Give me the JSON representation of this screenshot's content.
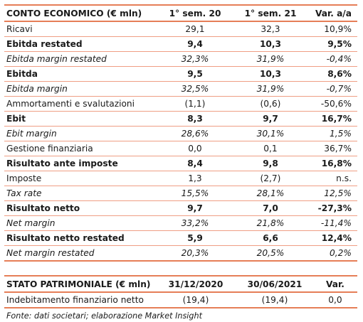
{
  "conto_economico": {
    "headers": [
      "CONTO ECONOMICO (€ mln)",
      "1° sem. 20",
      "1° sem. 21",
      "Var. a/a"
    ],
    "rows": [
      {
        "label": "Ricavi",
        "a": "29,1",
        "b": "32,3",
        "var": "10,9%",
        "style": "normal"
      },
      {
        "label": "Ebitda restated",
        "a": "9,4",
        "b": "10,3",
        "var": "9,5%",
        "style": "bold"
      },
      {
        "label": "Ebitda margin restated",
        "a": "32,3%",
        "b": "31,9%",
        "var": "-0,4%",
        "style": "italic"
      },
      {
        "label": "Ebitda",
        "a": "9,5",
        "b": "10,3",
        "var": "8,6%",
        "style": "bold"
      },
      {
        "label": "Ebitda margin",
        "a": "32,5%",
        "b": "31,9%",
        "var": "-0,7%",
        "style": "italic"
      },
      {
        "label": "Ammortamenti e svalutazioni",
        "a": "(1,1)",
        "b": "(0,6)",
        "var": "-50,6%",
        "style": "normal"
      },
      {
        "label": "Ebit",
        "a": "8,3",
        "b": "9,7",
        "var": "16,7%",
        "style": "bold"
      },
      {
        "label": "Ebit margin",
        "a": "28,6%",
        "b": "30,1%",
        "var": "1,5%",
        "style": "italic"
      },
      {
        "label": "Gestione finanziaria",
        "a": "0,0",
        "b": "0,1",
        "var": "36,7%",
        "style": "normal"
      },
      {
        "label": "Risultato ante imposte",
        "a": "8,4",
        "b": "9,8",
        "var": "16,8%",
        "style": "bold"
      },
      {
        "label": "Imposte",
        "a": "1,3",
        "b": "(2,7)",
        "var": "n.s.",
        "style": "normal"
      },
      {
        "label": "Tax rate",
        "a": "15,5%",
        "b": "28,1%",
        "var": "12,5%",
        "style": "italic"
      },
      {
        "label": "Risultato netto",
        "a": "9,7",
        "b": "7,0",
        "var": "-27,3%",
        "style": "bold"
      },
      {
        "label": "Net margin",
        "a": "33,2%",
        "b": "21,8%",
        "var": "-11,4%",
        "style": "italic"
      },
      {
        "label": "Risultato netto restated",
        "a": "5,9",
        "b": "6,6",
        "var": "12,4%",
        "style": "bold"
      },
      {
        "label": "Net margin restated",
        "a": "20,3%",
        "b": "20,5%",
        "var": "0,2%",
        "style": "italic"
      }
    ]
  },
  "stato_patrimoniale": {
    "headers": [
      "STATO PATRIMONIALE (€ mln)",
      "31/12/2020",
      "30/06/2021",
      "Var."
    ],
    "rows": [
      {
        "label": "Indebitamento finanziario netto",
        "a": "(19,4)",
        "b": "(19,4)",
        "var": "0,0",
        "style": "normal"
      }
    ]
  },
  "source": "Fonte: dati societari; elaborazione Market Insight",
  "colors": {
    "rule": "#e67e57",
    "row_rule": "#ef9e84"
  }
}
